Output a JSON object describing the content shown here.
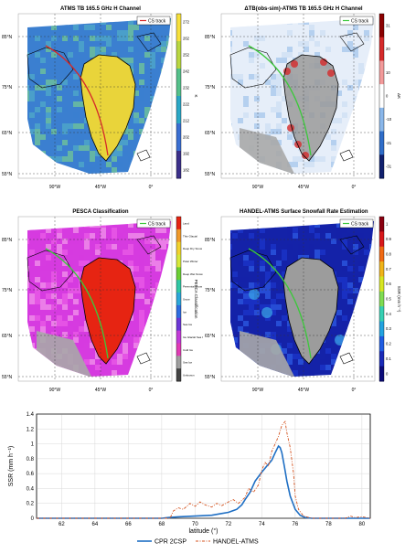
{
  "maps": [
    {
      "title": "ATMS TB 165.5 GHz H Channel",
      "legend": "CS track",
      "colorbar_ticks": [
        "272",
        "262",
        "252",
        "242",
        "232",
        "222",
        "212",
        "202",
        "192",
        "182"
      ],
      "colorbar_unit": "K",
      "lat_labels": [
        "85°N",
        "75°N",
        "65°N",
        "55°N"
      ],
      "lon_labels": [
        "90°W",
        "45°W",
        "0°"
      ]
    },
    {
      "title": "ΔTB(obs-sim)-ATMS TB 165.5 GHz H Channel",
      "legend": "CS track",
      "colorbar_ticks": [
        "31",
        "20",
        "10",
        "0",
        "-10",
        "-21",
        "-31"
      ],
      "colorbar_unit": "ΔK",
      "lat_labels": [
        "85°N",
        "75°N",
        "65°N",
        "55°N"
      ],
      "lon_labels": [
        "90°W",
        "45°W",
        "0°"
      ]
    },
    {
      "title": "PESCA Classification",
      "legend": "CS track",
      "colorbar_ticks": [
        "Land",
        "Thin Glacial",
        "Deep Dry Snow",
        "Polar Winter",
        "Deep Wet Snow",
        "Perennial Snow",
        "Snow",
        "Ice",
        "Sea Ice",
        "Ice Glacial Sea Ice",
        "Cold Ice",
        "Sea Ice",
        "Unknown"
      ],
      "colorbar_unit": "PESCA Classification",
      "lat_labels": [
        "85°N",
        "75°N",
        "65°N",
        "55°N"
      ],
      "lon_labels": [
        "90°W",
        "45°W",
        "0°"
      ]
    },
    {
      "title": "HANDEL-ATMS Surface Snowfall Rate Estimation",
      "legend": "CS track",
      "colorbar_ticks": [
        "1",
        "0.9",
        "0.8",
        "0.7",
        "0.6",
        "0.5",
        "0.4",
        "0.3",
        "0.2",
        "0.1",
        "0"
      ],
      "colorbar_unit": "SSR (mm h⁻¹)",
      "lat_labels": [
        "85°N",
        "75°N",
        "65°N",
        "55°N"
      ],
      "lon_labels": [
        "90°W",
        "45°W",
        "0°"
      ]
    }
  ],
  "chart_data": {
    "type": "line",
    "xlabel": "latitude (°)",
    "ylabel": "SSR (mm h⁻¹)",
    "xlim": [
      60.5,
      80.5
    ],
    "ylim": [
      0,
      1.4
    ],
    "xticks": [
      62,
      64,
      66,
      68,
      70,
      72,
      74,
      76,
      78,
      80
    ],
    "yticks": [
      0,
      0.2,
      0.4,
      0.6,
      0.8,
      1,
      1.2,
      1.4
    ],
    "grid": true,
    "legend_position": "bottom-center",
    "series": [
      {
        "name": "CPR 2CSP",
        "color": "#1f6fc4",
        "style": "solid",
        "x": [
          60.5,
          68.0,
          68.4,
          69.0,
          70.0,
          71.0,
          71.5,
          72.0,
          72.5,
          72.8,
          73.0,
          73.3,
          73.6,
          74.0,
          74.3,
          74.6,
          74.8,
          75.0,
          75.1,
          75.2,
          75.35,
          75.5,
          75.7,
          76.0,
          76.3,
          76.6,
          77.0,
          80.5
        ],
        "values": [
          0,
          0,
          0.01,
          0.02,
          0.03,
          0.04,
          0.06,
          0.08,
          0.12,
          0.18,
          0.25,
          0.35,
          0.5,
          0.62,
          0.7,
          0.78,
          0.88,
          0.97,
          0.95,
          0.88,
          0.7,
          0.5,
          0.3,
          0.12,
          0.04,
          0.01,
          0,
          0
        ]
      },
      {
        "name": "HANDEL-ATMS",
        "color": "#d4531f",
        "style": "dashdot",
        "x": [
          60.5,
          68.5,
          68.7,
          69.0,
          69.3,
          69.7,
          70.0,
          70.3,
          70.6,
          71.0,
          71.3,
          71.6,
          72.0,
          72.3,
          72.6,
          73.0,
          73.2,
          73.5,
          73.8,
          74.0,
          74.2,
          74.4,
          74.6,
          74.8,
          75.0,
          75.2,
          75.4,
          75.5,
          75.7,
          75.9,
          76.0,
          76.2,
          76.5,
          77.0,
          79.0,
          79.3,
          79.6,
          80.0,
          80.5
        ],
        "values": [
          0,
          0,
          0.1,
          0.14,
          0.12,
          0.2,
          0.16,
          0.22,
          0.18,
          0.15,
          0.2,
          0.17,
          0.22,
          0.25,
          0.2,
          0.28,
          0.4,
          0.35,
          0.45,
          0.65,
          0.75,
          0.7,
          0.9,
          1.0,
          1.1,
          1.25,
          1.3,
          1.15,
          0.95,
          0.6,
          0.3,
          0.12,
          0.03,
          0,
          0,
          0.03,
          0.01,
          0.02,
          0
        ]
      }
    ]
  }
}
